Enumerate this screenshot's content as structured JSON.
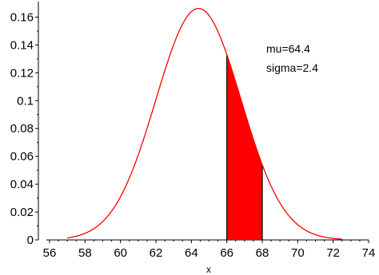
{
  "chart_data": {
    "type": "line",
    "title": "",
    "xlabel": "x",
    "ylabel": "",
    "xlim": [
      56,
      74
    ],
    "ylim": [
      0,
      0.17
    ],
    "x_ticks": [
      56,
      58,
      60,
      62,
      64,
      66,
      68,
      70,
      72,
      74
    ],
    "x_tick_labels": [
      "56",
      "58",
      "60",
      "62",
      "64",
      "66",
      "68",
      "70",
      "72",
      "74"
    ],
    "y_ticks": [
      0,
      0.02,
      0.04,
      0.06,
      0.08,
      0.1,
      0.12,
      0.14,
      0.16
    ],
    "y_tick_labels": [
      "0",
      "0.02",
      "0.04",
      "0.06",
      "0.08",
      "0.1",
      "0.12",
      "0.14",
      "0.16"
    ],
    "grid": false,
    "series": [
      {
        "distribution": "normal",
        "mu": 64.4,
        "sigma": 2.4,
        "x_range": [
          57,
          72.5
        ],
        "color": "#ff0000",
        "shaded_interval": [
          66,
          68
        ],
        "shade_color": "#ff0000"
      }
    ],
    "annotations": [
      "mu=64.4",
      "sigma=2.4"
    ]
  }
}
